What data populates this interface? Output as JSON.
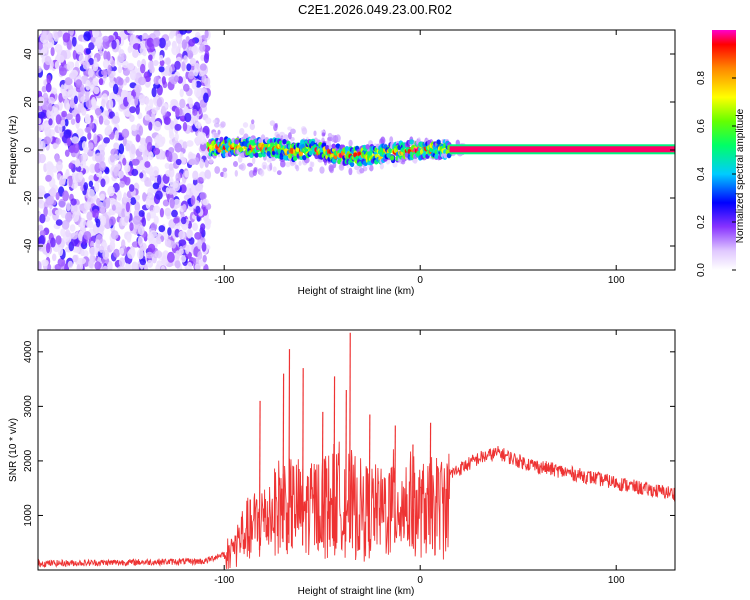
{
  "title": "C2E1.2026.049.23.00.R02",
  "chart_data": [
    {
      "type": "heatmap",
      "panel": "spectrogram",
      "title": "C2E1.2026.049.23.00.R02",
      "xlabel": "Height of straight line (km)",
      "ylabel": "Frequency (Hz)",
      "xlim": [
        -195,
        130
      ],
      "ylim": [
        -50,
        50
      ],
      "xticks": [
        -100,
        0,
        100
      ],
      "yticks": [
        -40,
        -20,
        0,
        20,
        40
      ],
      "noise_region_x": [
        -195,
        -108
      ],
      "signal_track": [
        {
          "x": -108,
          "y": 0.5
        },
        {
          "x": -95,
          "y": 1.5
        },
        {
          "x": -85,
          "y": 1.0
        },
        {
          "x": -75,
          "y": 1.0
        },
        {
          "x": -65,
          "y": -0.5
        },
        {
          "x": -55,
          "y": 0.5
        },
        {
          "x": -45,
          "y": -1.5
        },
        {
          "x": -35,
          "y": -2.5
        },
        {
          "x": -25,
          "y": -2.0
        },
        {
          "x": -15,
          "y": -1.0
        },
        {
          "x": -5,
          "y": 0.0
        },
        {
          "x": 5,
          "y": 0.3
        },
        {
          "x": 15,
          "y": 0.3
        },
        {
          "x": 130,
          "y": 0.3
        }
      ],
      "colorbar": {
        "label": "Normalized spectral amplitude",
        "range": [
          0,
          1
        ],
        "ticks": [
          "0.0",
          "0.2",
          "0.4",
          "0.6",
          "0.8"
        ]
      }
    },
    {
      "type": "line",
      "panel": "snr",
      "xlabel": "Height of straight line (km)",
      "ylabel": "SNR (10 * v/v)",
      "xlim": [
        -195,
        130
      ],
      "ylim": [
        0,
        4400
      ],
      "xticks": [
        -100,
        0,
        100
      ],
      "yticks": [
        1000,
        2000,
        3000,
        4000
      ],
      "series": [
        {
          "name": "SNR",
          "color": "#ee3333",
          "envelope": [
            {
              "x": -195,
              "y": 120
            },
            {
              "x": -150,
              "y": 140
            },
            {
              "x": -110,
              "y": 160
            },
            {
              "x": -100,
              "y": 300
            },
            {
              "x": -90,
              "y": 900
            },
            {
              "x": -80,
              "y": 1300
            },
            {
              "x": -70,
              "y": 1700
            },
            {
              "x": -60,
              "y": 1500
            },
            {
              "x": -50,
              "y": 1700
            },
            {
              "x": -40,
              "y": 1800
            },
            {
              "x": -30,
              "y": 1500
            },
            {
              "x": -20,
              "y": 1500
            },
            {
              "x": -10,
              "y": 1750
            },
            {
              "x": 0,
              "y": 1500
            },
            {
              "x": 10,
              "y": 1650
            },
            {
              "x": 20,
              "y": 1850
            },
            {
              "x": 30,
              "y": 2050
            },
            {
              "x": 40,
              "y": 2150
            },
            {
              "x": 50,
              "y": 2000
            },
            {
              "x": 60,
              "y": 1900
            },
            {
              "x": 80,
              "y": 1750
            },
            {
              "x": 100,
              "y": 1600
            },
            {
              "x": 115,
              "y": 1480
            },
            {
              "x": 130,
              "y": 1400
            }
          ],
          "peaks": [
            {
              "x": -67,
              "y": 4050
            },
            {
              "x": -60,
              "y": 3700
            },
            {
              "x": -36,
              "y": 4350
            },
            {
              "x": -44,
              "y": 3550
            },
            {
              "x": -38,
              "y": 3300
            },
            {
              "x": -82,
              "y": 3100
            },
            {
              "x": -70,
              "y": 3600
            },
            {
              "x": -26,
              "y": 2850
            },
            {
              "x": -13,
              "y": 2650
            },
            {
              "x": -50,
              "y": 2900
            },
            {
              "x": 5,
              "y": 2700
            },
            {
              "x": -4,
              "y": 2300
            }
          ]
        }
      ]
    }
  ]
}
